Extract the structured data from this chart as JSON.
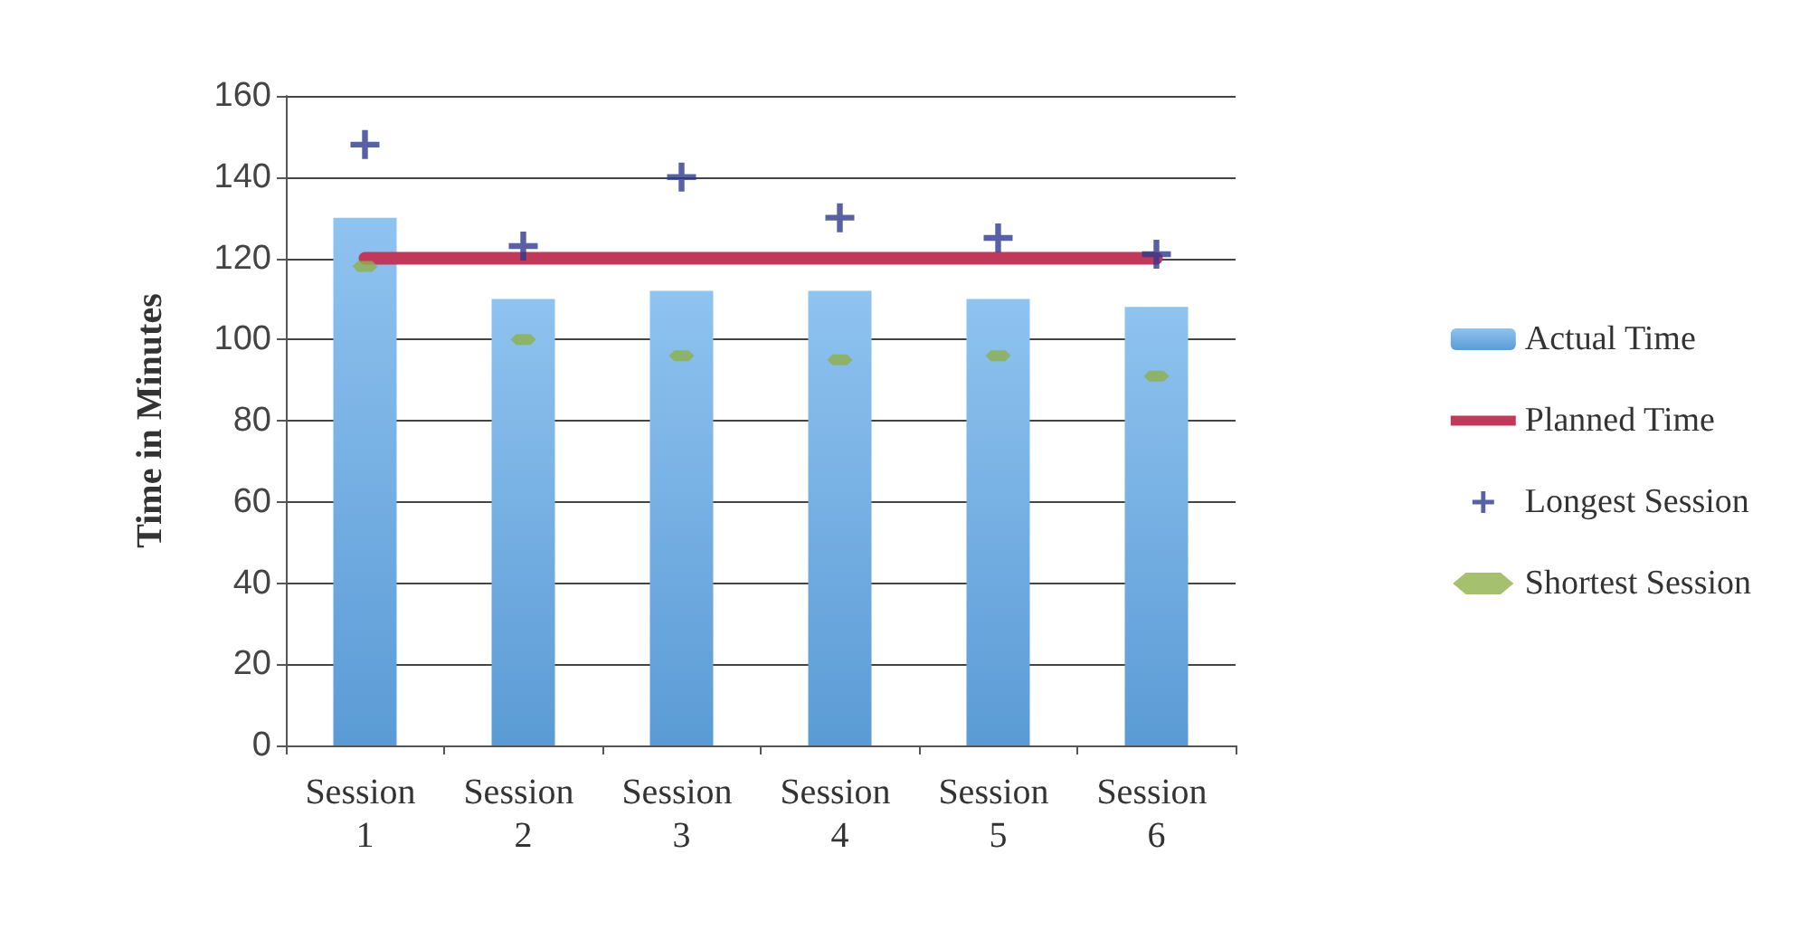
{
  "chart_data": {
    "type": "bar",
    "ylabel": "Time in Minutes",
    "categories": [
      "Session 1",
      "Session 2",
      "Session 3",
      "Session 4",
      "Session 5",
      "Session 6"
    ],
    "series": [
      {
        "name": "Actual Time",
        "color": "#5b9bd5",
        "values": [
          130,
          110,
          112,
          112,
          110,
          108
        ]
      },
      {
        "name": "Planned Time",
        "type": "line",
        "color": "#c0395a",
        "marker": "none",
        "values": [
          120,
          120,
          120,
          120,
          120,
          120
        ]
      },
      {
        "name": "Longest Session",
        "type": "scatter",
        "color": "#2e3a8c",
        "marker": "cross",
        "values": [
          148,
          123,
          140,
          130,
          125,
          121
        ]
      },
      {
        "name": "Shortest Session",
        "type": "scatter",
        "color": "#8fb04a",
        "values": [
          118,
          100,
          96,
          95,
          96,
          91
        ]
      }
    ],
    "ylim": [
      0,
      160
    ],
    "yticks": [
      0,
      20,
      40,
      60,
      80,
      100,
      120,
      140,
      160
    ],
    "grid": "y",
    "legend": "right"
  }
}
